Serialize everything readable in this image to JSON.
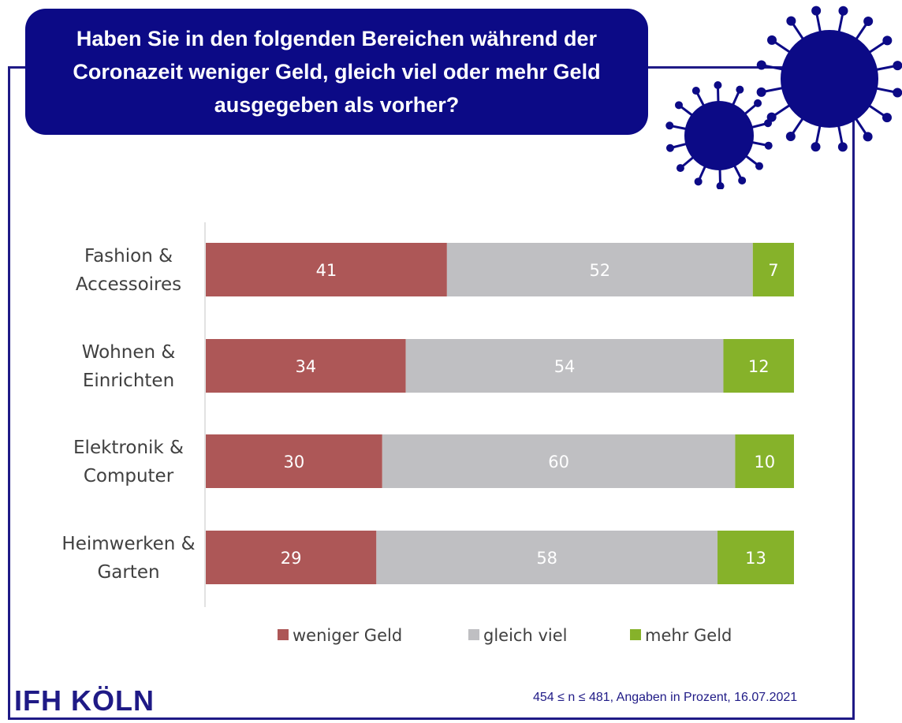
{
  "title": "Haben Sie in den folgenden Bereichen während der\nCoronazeit weniger Geld, gleich viel oder mehr Geld\nausgegeben als vorher?",
  "brand": "IFH KÖLN",
  "footnote": "454  ≤ n ≤ 481,  Angaben in Prozent, 16.07.2021",
  "colors": {
    "navy": "#0c0a86",
    "weniger": "#ad5757",
    "gleich": "#bfbfc2",
    "mehr": "#86b22a"
  },
  "chart_data": {
    "type": "bar",
    "orientation": "horizontal-stacked",
    "categories": [
      [
        "Fashion &",
        "Accessoires"
      ],
      [
        "Wohnen &",
        "Einrichten"
      ],
      [
        "Elektronik &",
        "Computer"
      ],
      [
        "Heimwerken &",
        "Garten"
      ]
    ],
    "series": [
      {
        "name": "weniger Geld",
        "values": [
          41,
          34,
          30,
          29
        ]
      },
      {
        "name": "gleich viel",
        "values": [
          52,
          54,
          60,
          58
        ]
      },
      {
        "name": "mehr Geld",
        "values": [
          7,
          12,
          10,
          13
        ]
      }
    ],
    "xlim": [
      0,
      100
    ],
    "unit": "Prozent",
    "legend_position": "bottom",
    "grid": false
  }
}
